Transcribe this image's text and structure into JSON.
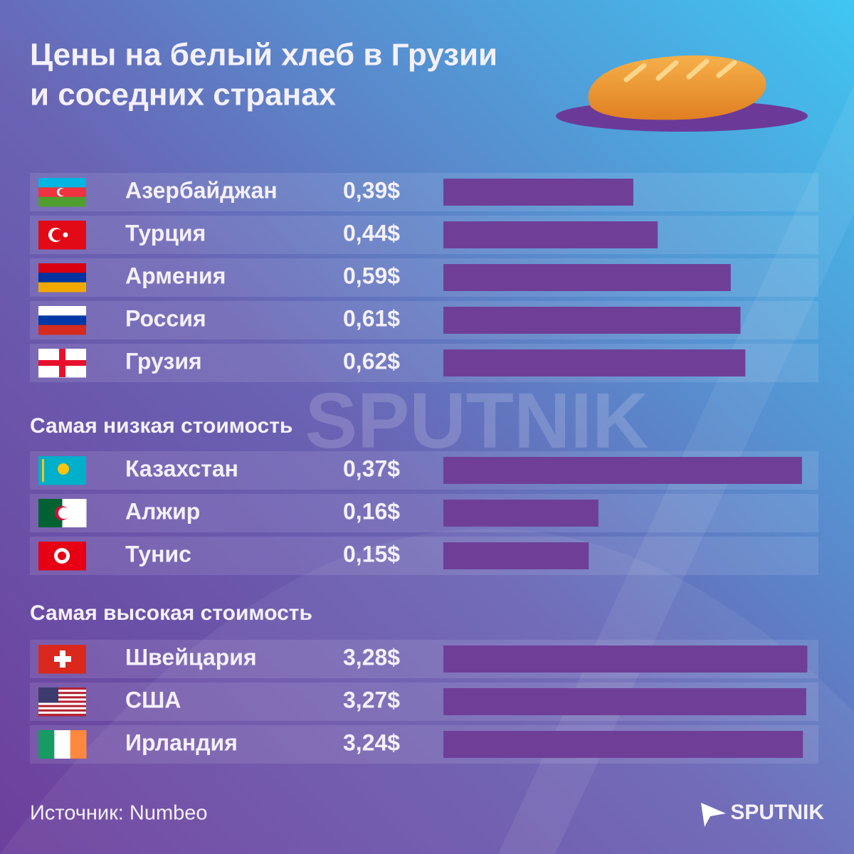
{
  "title": [
    "Цены на белый хлеб в Грузии",
    "и соседних странах"
  ],
  "source": "Источник: Numbeo",
  "logo": "SPUTNIK",
  "chart_data": [
    {
      "type": "hbar",
      "categories": [
        "Азербайджан",
        "Турция",
        "Армения",
        "Россия",
        "Грузия"
      ],
      "values": [
        0.39,
        0.44,
        0.59,
        0.61,
        0.62
      ],
      "value_labels": [
        "0,39$",
        "0,44$",
        "0,59$",
        "0,61$",
        "0,62$"
      ],
      "color": "#6f3f98",
      "xlim": [
        0,
        0.77
      ]
    },
    {
      "type": "hbar",
      "title": "Самая низкая стоимость",
      "categories": [
        "Казахстан",
        "Алжир",
        "Тунис"
      ],
      "values": [
        0.37,
        0.16,
        0.15
      ],
      "value_labels": [
        "0,37$",
        "0,16$",
        "0,15$"
      ],
      "color": "#6f3f98",
      "xlim": [
        0,
        0.387
      ]
    },
    {
      "type": "hbar",
      "title": "Самая высокая стоимость",
      "categories": [
        "Швейцария",
        "США",
        "Ирландия"
      ],
      "values": [
        3.28,
        3.27,
        3.24
      ],
      "value_labels": [
        "3,28$",
        "3,27$",
        "3,24$"
      ],
      "color": "#6f3f98",
      "xlim": [
        0,
        3.38
      ]
    }
  ]
}
